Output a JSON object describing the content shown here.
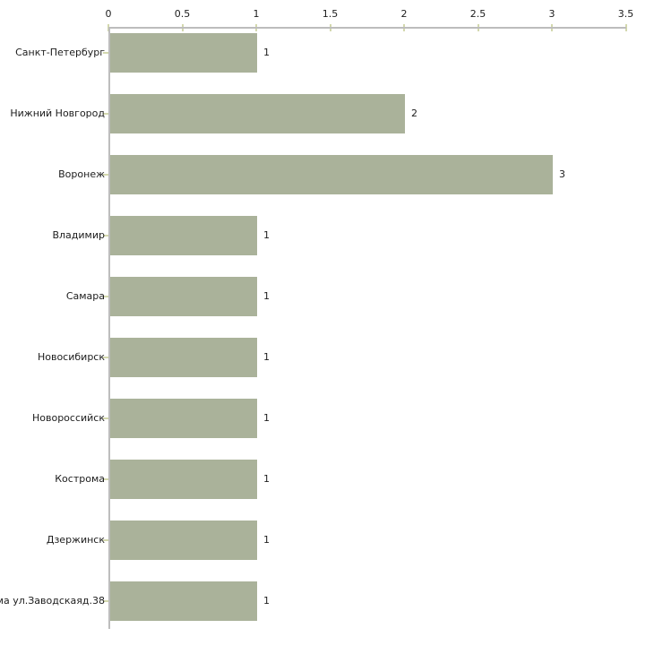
{
  "chart_data": {
    "type": "bar",
    "orientation": "horizontal",
    "title": "",
    "xlabel": "",
    "ylabel": "",
    "categories": [
      "Санкт-Петербург",
      "Нижний Новгород",
      "Воронеж",
      "Владимир",
      "Самара",
      "Новосибирск",
      "Новороссийск",
      "Кострома",
      "Дзержинск",
      "ма ул.Заводскаяд.38"
    ],
    "values": [
      1,
      2,
      3,
      1,
      1,
      1,
      1,
      1,
      1,
      1
    ],
    "value_labels": [
      "1",
      "2",
      "3",
      "1",
      "1",
      "1",
      "1",
      "1",
      "1",
      "1"
    ],
    "x_ticks": [
      0,
      0.5,
      1,
      1.5,
      2,
      2.5,
      3,
      3.5
    ],
    "x_tick_labels": [
      "0",
      "0.5",
      "1",
      "1.5",
      "2",
      "2.5",
      "3",
      "3.5"
    ],
    "xlim": [
      0,
      3.5
    ],
    "grid": false,
    "legend": "none",
    "colors": {
      "bar": "#aab29a",
      "axis": "#bdbdbd",
      "tick_mark": "#d3d8ad",
      "text": "#1c1c1c",
      "background": "#ffffff"
    }
  }
}
